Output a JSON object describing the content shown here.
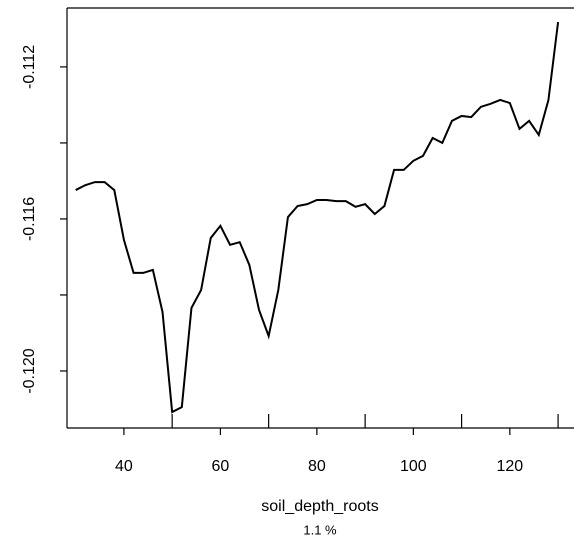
{
  "chart_data": {
    "type": "line",
    "xlabel": "soil_depth_roots",
    "subtitle": "1.1 %",
    "x": [
      30,
      32,
      34,
      36,
      38,
      40,
      42,
      44,
      46,
      48,
      50,
      52,
      54,
      56,
      58,
      60,
      62,
      64,
      66,
      68,
      70,
      72,
      74,
      76,
      78,
      80,
      82,
      84,
      86,
      88,
      90,
      92,
      94,
      96,
      98,
      100,
      102,
      104,
      106,
      108,
      110,
      112,
      114,
      116,
      118,
      120,
      122,
      124,
      126,
      128,
      130
    ],
    "series": [
      {
        "color": "#000000",
        "values": [
          -0.11524,
          -0.11511,
          -0.11503,
          -0.11503,
          -0.11524,
          -0.11655,
          -0.11742,
          -0.11742,
          -0.11734,
          -0.11845,
          -0.12108,
          -0.12095,
          -0.11834,
          -0.11787,
          -0.1165,
          -0.11618,
          -0.11668,
          -0.11661,
          -0.11721,
          -0.11839,
          -0.11908,
          -0.11787,
          -0.11595,
          -0.11566,
          -0.11561,
          -0.1155,
          -0.1155,
          -0.11553,
          -0.11553,
          -0.11568,
          -0.11561,
          -0.11587,
          -0.11566,
          -0.11471,
          -0.11471,
          -0.11447,
          -0.11434,
          -0.11387,
          -0.114,
          -0.11342,
          -0.11329,
          -0.11332,
          -0.11305,
          -0.11297,
          -0.11287,
          -0.11295,
          -0.11363,
          -0.11342,
          -0.11379,
          -0.11287,
          -0.11082
        ]
      }
    ],
    "rug": [
      50,
      70,
      90,
      110,
      130
    ],
    "xlim": [
      28.2,
      133.3
    ],
    "ylim": [
      -0.1215,
      -0.11045
    ],
    "xticks": [
      40,
      60,
      80,
      100,
      120
    ],
    "yticks": [
      -0.112,
      -0.116,
      {
        "value": -0.12,
        "label": "-0.120"
      }
    ],
    "yminor_ticks": [
      -0.114,
      -0.118
    ]
  }
}
